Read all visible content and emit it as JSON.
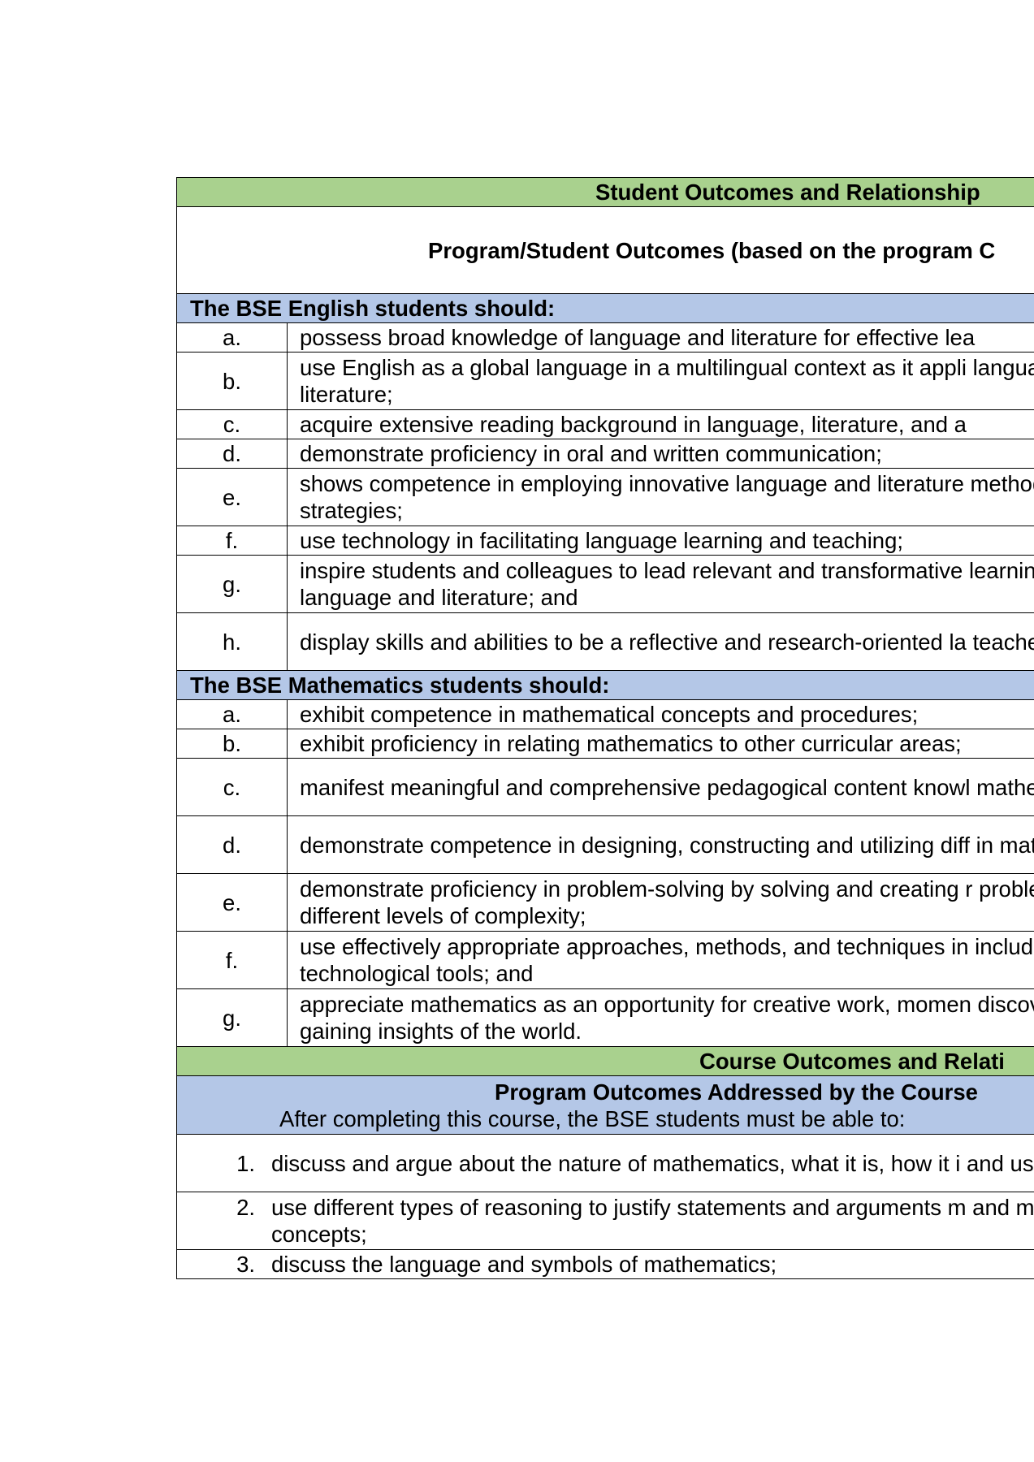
{
  "section_title": "Student Outcomes and Relationship",
  "program_header": "Program/Student Outcomes (based on the program C",
  "english": {
    "heading": "The BSE English students should:",
    "items": [
      {
        "letter": "a.",
        "text": "possess broad knowledge of language and literature for effective lea"
      },
      {
        "letter": "b.",
        "text": "use English as a global language in a multilingual context as it appli language and literature;"
      },
      {
        "letter": "c.",
        "text": "acquire extensive reading background in language, literature, and a"
      },
      {
        "letter": "d.",
        "text": "demonstrate proficiency in oral and written communication;"
      },
      {
        "letter": "e.",
        "text": "shows competence in employing innovative language and literature methodologies, and strategies;"
      },
      {
        "letter": "f.",
        "text": "use technology in facilitating language learning and teaching;"
      },
      {
        "letter": "g.",
        "text": "inspire students and colleagues to lead relevant and transformative learning and teaching language and literature; and"
      },
      {
        "letter": "h.",
        "text": "display skills and abilities to be a reflective and research-oriented la teacher."
      }
    ]
  },
  "math": {
    "heading": "The BSE Mathematics students should:",
    "items": [
      {
        "letter": "a.",
        "text": "exhibit competence in mathematical concepts and procedures;"
      },
      {
        "letter": "b.",
        "text": "exhibit proficiency in relating mathematics to other curricular areas;"
      },
      {
        "letter": "c.",
        "text": "manifest meaningful and comprehensive pedagogical content knowl mathematics;"
      },
      {
        "letter": "d.",
        "text": "demonstrate competence in designing, constructing and utilizing diff in mathematics;"
      },
      {
        "letter": "e.",
        "text": "demonstrate proficiency in problem-solving by solving and creating r problems with different levels of complexity;"
      },
      {
        "letter": "f.",
        "text": "use effectively appropriate approaches, methods, and techniques in including technological tools; and"
      },
      {
        "letter": "g.",
        "text": "appreciate mathematics as an opportunity for creative work, momen discovery and gaining insights of the world."
      }
    ]
  },
  "course_title": "Course Outcomes and Relati",
  "course_header": {
    "title": "Program Outcomes Addressed by the Course",
    "subtitle": "After completing this course, the BSE students must be able to:"
  },
  "course_items": [
    {
      "num": "1.",
      "text": "discuss and argue about the nature of mathematics, what it is, how it i and used;"
    },
    {
      "num": "2.",
      "text": "use different types of reasoning to justify statements and arguments m and mathematical concepts;"
    },
    {
      "num": "3.",
      "text": "discuss the language and symbols of mathematics;"
    }
  ]
}
